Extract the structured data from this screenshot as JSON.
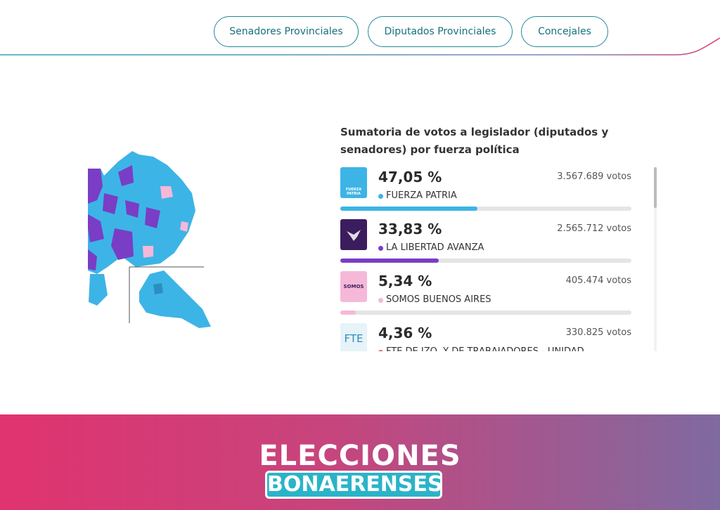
{
  "nav": {
    "buttons": [
      "Senadores Provinciales",
      "Diputados Provinciales",
      "Concejales"
    ]
  },
  "panel": {
    "title": "Sumatoria de votos a legislador (diputados y senadores) por fuerza política",
    "parties": [
      {
        "name": "FUERZA PATRIA",
        "percent": 47.05,
        "percent_label": "47,05 %",
        "votes_label": "3.567.689 votos",
        "color": "#3db4e6",
        "logo_text": "FUERZA PATRIA"
      },
      {
        "name": "LA LIBERTAD AVANZA",
        "percent": 33.83,
        "percent_label": "33,83 %",
        "votes_label": "2.565.712 votos",
        "color": "#7a3dc6"
      },
      {
        "name": "SOMOS BUENOS AIRES",
        "percent": 5.34,
        "percent_label": "5,34 %",
        "votes_label": "405.474 votos",
        "color": "#f6b8d8",
        "logo_text": "SOMOS"
      },
      {
        "name": "FTE DE IZQ. Y DE TRABAJADORES - UNIDAD",
        "percent": 4.36,
        "percent_label": "4,36 %",
        "votes_label": "330.825 votos",
        "color": "#e06464",
        "logo_text": "FTE"
      }
    ]
  },
  "footer": {
    "line1": "ELECCIONES",
    "line2": "BONAERENSES"
  }
}
